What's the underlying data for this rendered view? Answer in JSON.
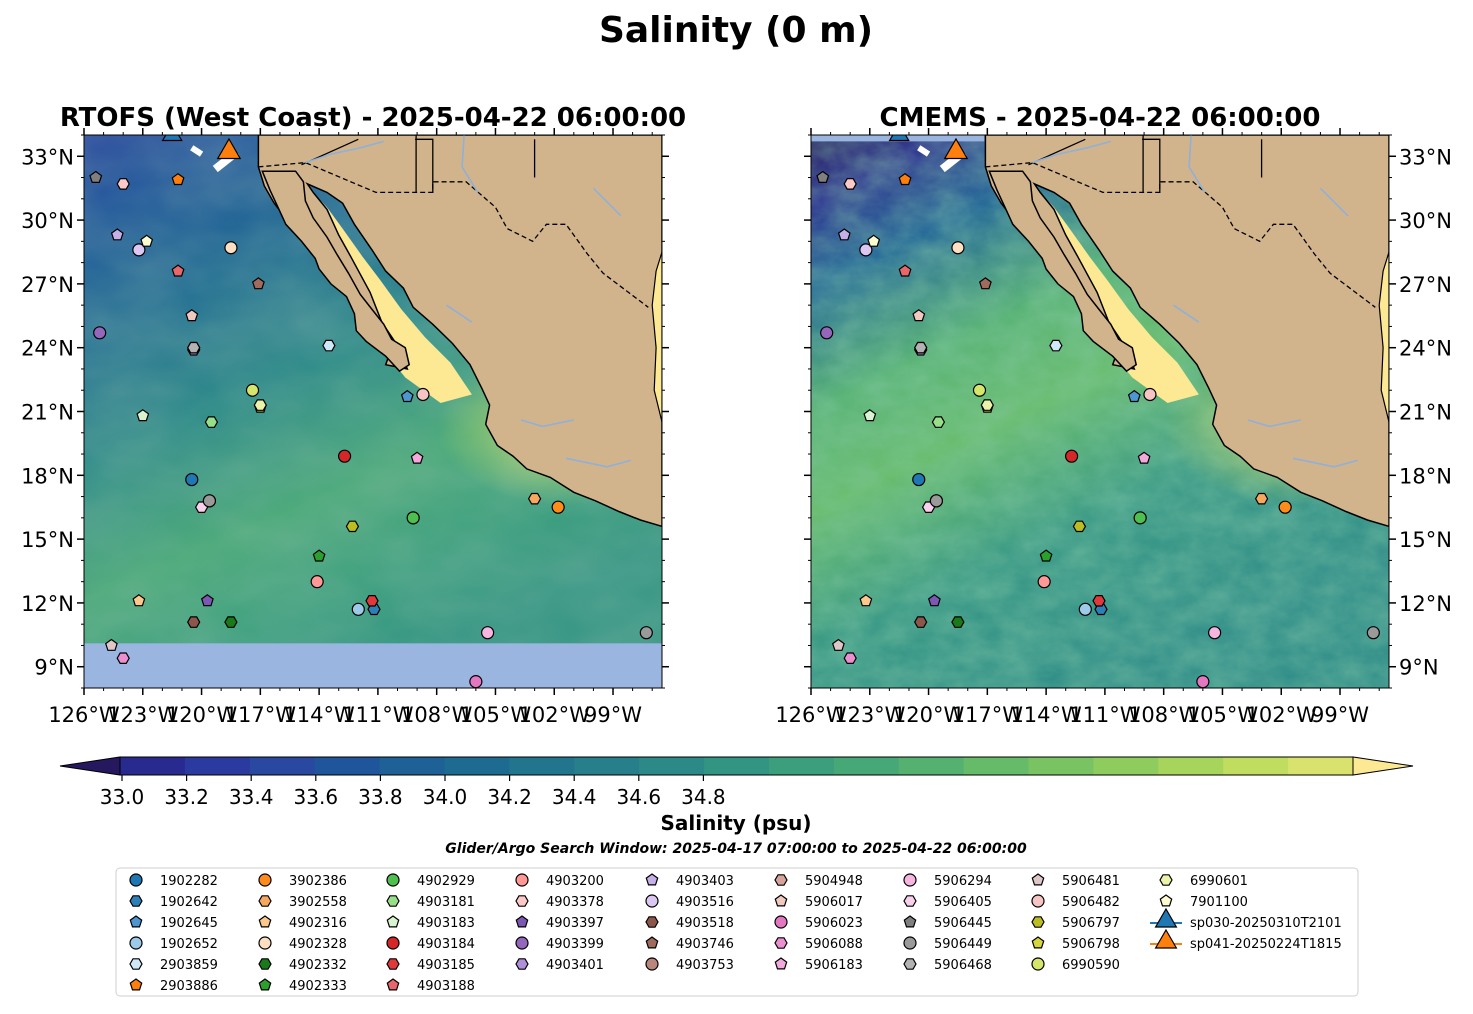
{
  "suptitle": "Salinity (0 m)",
  "panels": [
    {
      "title": "RTOFS (West Coast) - 2025-04-22 06:00:00",
      "model": "rtofs"
    },
    {
      "title": "CMEMS - 2025-04-22 06:00:00",
      "model": "cmems"
    }
  ],
  "colorbar": {
    "label": "Salinity (psu)",
    "ticks": [
      "33.0",
      "33.2",
      "33.4",
      "33.6",
      "33.8",
      "34.0",
      "34.2",
      "34.4",
      "34.6",
      "34.8"
    ],
    "tick_values": [
      33.0,
      33.2,
      33.4,
      33.6,
      33.8,
      34.0,
      34.2,
      34.4,
      34.6,
      34.8
    ],
    "range": [
      32.9,
      34.9
    ],
    "extend": "both",
    "colors": [
      "#26185f",
      "#282a8f",
      "#2a3a9e",
      "#29489f",
      "#1f559b",
      "#1d6197",
      "#1e6b92",
      "#21758d",
      "#267f8b",
      "#2b8a87",
      "#329482",
      "#3b9f7d",
      "#46a876",
      "#55b170",
      "#66bb69",
      "#7ac363",
      "#8fcc5e",
      "#a7d55c",
      "#c0dd5f",
      "#d8e26d",
      "#fde894"
    ]
  },
  "legend": {
    "title": "Glider/Argo Search Window: 2025-04-17 07:00:00 to 2025-04-22 06:00:00",
    "entries": [
      {
        "label": "1902282",
        "marker": "circle",
        "color": "#1f77b4"
      },
      {
        "label": "1902642",
        "marker": "hexagon",
        "color": "#2d7fb8"
      },
      {
        "label": "1902645",
        "marker": "pentagon",
        "color": "#4d96d1"
      },
      {
        "label": "1902652",
        "marker": "circle",
        "color": "#9ecae9"
      },
      {
        "label": "2903859",
        "marker": "hexagon",
        "color": "#cfe8f7"
      },
      {
        "label": "2903886",
        "marker": "pentagon",
        "color": "#ff7f0e"
      },
      {
        "label": "3902386",
        "marker": "circle",
        "color": "#ff8c1a"
      },
      {
        "label": "3902558",
        "marker": "hexagon",
        "color": "#f7a860"
      },
      {
        "label": "4902316",
        "marker": "pentagon",
        "color": "#fcc88d"
      },
      {
        "label": "4902328",
        "marker": "circle",
        "color": "#fde0c2"
      },
      {
        "label": "4902332",
        "marker": "hexagon",
        "color": "#1a7a1a"
      },
      {
        "label": "4902333",
        "marker": "pentagon",
        "color": "#2ca02c"
      },
      {
        "label": "4902929",
        "marker": "circle",
        "color": "#4fbf4f"
      },
      {
        "label": "4903181",
        "marker": "hexagon",
        "color": "#98df8a"
      },
      {
        "label": "4903183",
        "marker": "pentagon",
        "color": "#d9f5d0"
      },
      {
        "label": "4903184",
        "marker": "circle",
        "color": "#d62728"
      },
      {
        "label": "4903185",
        "marker": "hexagon",
        "color": "#e0393b"
      },
      {
        "label": "4903188",
        "marker": "pentagon",
        "color": "#e8676a"
      },
      {
        "label": "4903200",
        "marker": "circle",
        "color": "#ff9896"
      },
      {
        "label": "4903378",
        "marker": "hexagon",
        "color": "#fcc9c8"
      },
      {
        "label": "4903397",
        "marker": "pentagon",
        "color": "#7e57b3"
      },
      {
        "label": "4903399",
        "marker": "circle",
        "color": "#9467bd"
      },
      {
        "label": "4903401",
        "marker": "hexagon",
        "color": "#b08fd9"
      },
      {
        "label": "4903403",
        "marker": "pentagon",
        "color": "#c5b0e8"
      },
      {
        "label": "4903516",
        "marker": "circle",
        "color": "#dcc7f2"
      },
      {
        "label": "4903518",
        "marker": "hexagon",
        "color": "#8c564b"
      },
      {
        "label": "4903746",
        "marker": "pentagon",
        "color": "#a06a5c"
      },
      {
        "label": "4903753",
        "marker": "circle",
        "color": "#b8867a"
      },
      {
        "label": "5904948",
        "marker": "hexagon",
        "color": "#d6a49a"
      },
      {
        "label": "5906017",
        "marker": "pentagon",
        "color": "#f2c9bf"
      },
      {
        "label": "5906023",
        "marker": "circle",
        "color": "#e377c2"
      },
      {
        "label": "5906088",
        "marker": "hexagon",
        "color": "#ea8fcf"
      },
      {
        "label": "5906183",
        "marker": "pentagon",
        "color": "#f3a9dc"
      },
      {
        "label": "5906294",
        "marker": "circle",
        "color": "#f7b6e0"
      },
      {
        "label": "5906405",
        "marker": "hexagon",
        "color": "#fad1ec"
      },
      {
        "label": "5906445",
        "marker": "pentagon",
        "color": "#7f7f7f"
      },
      {
        "label": "5906449",
        "marker": "circle",
        "color": "#9a9a9a"
      },
      {
        "label": "5906468",
        "marker": "hexagon",
        "color": "#b3b3b3"
      },
      {
        "label": "5906481",
        "marker": "pentagon",
        "color": "#e0c7c7"
      },
      {
        "label": "5906482",
        "marker": "circle",
        "color": "#f7c4c4"
      },
      {
        "label": "5906797",
        "marker": "hexagon",
        "color": "#bcbd22"
      },
      {
        "label": "5906798",
        "marker": "pentagon",
        "color": "#d4d63a"
      },
      {
        "label": "6990590",
        "marker": "circle",
        "color": "#d6e66a"
      },
      {
        "label": "6990601",
        "marker": "hexagon",
        "color": "#ecf3a8"
      },
      {
        "label": "7901100",
        "marker": "pentagon",
        "color": "#fdfbd0"
      },
      {
        "label": "sp030-20250310T2101",
        "marker": "triangle",
        "color": "#1f77b4"
      },
      {
        "label": "sp041-20250224T1815",
        "marker": "triangle",
        "color": "#ff7f0e"
      }
    ]
  },
  "chart_data": {
    "type": "heatmap",
    "variable": "Salinity",
    "units": "psu",
    "depth_m": 0,
    "valid_time": "2025-04-22 06:00:00",
    "lon_range": [
      -126,
      -96.5
    ],
    "lat_range": [
      8,
      34
    ],
    "xticks": [
      -126,
      -123,
      -120,
      -117,
      -114,
      -111,
      -108,
      -105,
      -102,
      -99
    ],
    "xticklabels": [
      "126°W",
      "123°W",
      "120°W",
      "117°W",
      "114°W",
      "111°W",
      "108°W",
      "105°W",
      "102°W",
      "99°W"
    ],
    "yticks": [
      9,
      12,
      15,
      18,
      21,
      24,
      27,
      30,
      33
    ],
    "yticklabels": [
      "9°N",
      "12°N",
      "15°N",
      "18°N",
      "21°N",
      "24°N",
      "27°N",
      "30°N",
      "33°N"
    ],
    "land_color": "#d2b48c",
    "nodata_color": "#9ab5e0",
    "observations": [
      {
        "id": "1902282",
        "lon": -120.5,
        "lat": 17.8
      },
      {
        "id": "1902642",
        "lon": -111.2,
        "lat": 11.7
      },
      {
        "id": "1902645",
        "lon": -109.5,
        "lat": 21.7
      },
      {
        "id": "1902652",
        "lon": -112.0,
        "lat": 11.7
      },
      {
        "id": "2903859",
        "lon": -113.5,
        "lat": 24.1
      },
      {
        "id": "2903886",
        "lon": -121.2,
        "lat": 31.9
      },
      {
        "id": "3902386",
        "lon": -101.8,
        "lat": 16.5
      },
      {
        "id": "3902558",
        "lon": -103.0,
        "lat": 16.9
      },
      {
        "id": "4902316",
        "lon": -123.2,
        "lat": 12.1
      },
      {
        "id": "4902328",
        "lon": -118.5,
        "lat": 28.7
      },
      {
        "id": "4902332",
        "lon": -118.5,
        "lat": 11.1
      },
      {
        "id": "4902333",
        "lon": -114.0,
        "lat": 14.2
      },
      {
        "id": "4902929",
        "lon": -109.2,
        "lat": 16.0
      },
      {
        "id": "4903181",
        "lon": -119.5,
        "lat": 20.5
      },
      {
        "id": "4903183",
        "lon": -123.0,
        "lat": 20.8
      },
      {
        "id": "4903184",
        "lon": -112.7,
        "lat": 18.9
      },
      {
        "id": "4903185",
        "lon": -111.3,
        "lat": 12.1
      },
      {
        "id": "4903188",
        "lon": -121.2,
        "lat": 27.6
      },
      {
        "id": "4903200",
        "lon": -114.1,
        "lat": 13.0
      },
      {
        "id": "4903378",
        "lon": -124.0,
        "lat": 31.7
      },
      {
        "id": "4903397",
        "lon": -119.7,
        "lat": 12.1
      },
      {
        "id": "4903399",
        "lon": -125.2,
        "lat": 24.7
      },
      {
        "id": "4903401",
        "lon": -120.4,
        "lat": 23.9
      },
      {
        "id": "4903403",
        "lon": -124.3,
        "lat": 29.3
      },
      {
        "id": "4903516",
        "lon": -123.2,
        "lat": 28.6
      },
      {
        "id": "4903518",
        "lon": -120.4,
        "lat": 11.1
      },
      {
        "id": "4903746",
        "lon": -117.1,
        "lat": 27.0
      },
      {
        "id": "4903753",
        "lon": -119.6,
        "lat": 16.8
      },
      {
        "id": "5904948",
        "lon": -120.4,
        "lat": 24.0
      },
      {
        "id": "5906017",
        "lon": -120.5,
        "lat": 25.5
      },
      {
        "id": "5906023",
        "lon": -106.0,
        "lat": 8.3
      },
      {
        "id": "5906088",
        "lon": -124.0,
        "lat": 9.4
      },
      {
        "id": "5906183",
        "lon": -109.0,
        "lat": 18.8
      },
      {
        "id": "5906294",
        "lon": -105.4,
        "lat": 10.6
      },
      {
        "id": "5906405",
        "lon": -120.0,
        "lat": 16.5
      },
      {
        "id": "5906445",
        "lon": -125.4,
        "lat": 32.0
      },
      {
        "id": "5906449",
        "lon": -119.6,
        "lat": 16.8
      },
      {
        "id": "5906468",
        "lon": -120.4,
        "lat": 24.0
      },
      {
        "id": "5906481",
        "lon": -124.6,
        "lat": 10.0
      },
      {
        "id": "5906482",
        "lon": -108.7,
        "lat": 21.8
      },
      {
        "id": "5906797",
        "lon": -112.3,
        "lat": 15.6
      },
      {
        "id": "5906798",
        "lon": -117.0,
        "lat": 21.2
      },
      {
        "id": "6990590",
        "lon": -117.4,
        "lat": 22.0
      },
      {
        "id": "6990601",
        "lon": -117.0,
        "lat": 21.3
      },
      {
        "id": "7901100",
        "lon": -122.8,
        "lat": 29.0
      },
      {
        "id": "sp030-20250310T2101",
        "lon": -121.5,
        "lat": 34.0
      },
      {
        "id": "sp041-20250224T1815",
        "lon": -118.6,
        "lat": 33.2
      }
    ],
    "panels": [
      {
        "model": "RTOFS (West Coast)",
        "nodata_below_lat": 10.1
      },
      {
        "model": "CMEMS",
        "nodata_above_lat": 33.7
      }
    ],
    "extra_markers": [
      {
        "id": "5906449",
        "lon": -97.3,
        "lat": 10.6,
        "color": "#9a9a9a"
      }
    ]
  }
}
